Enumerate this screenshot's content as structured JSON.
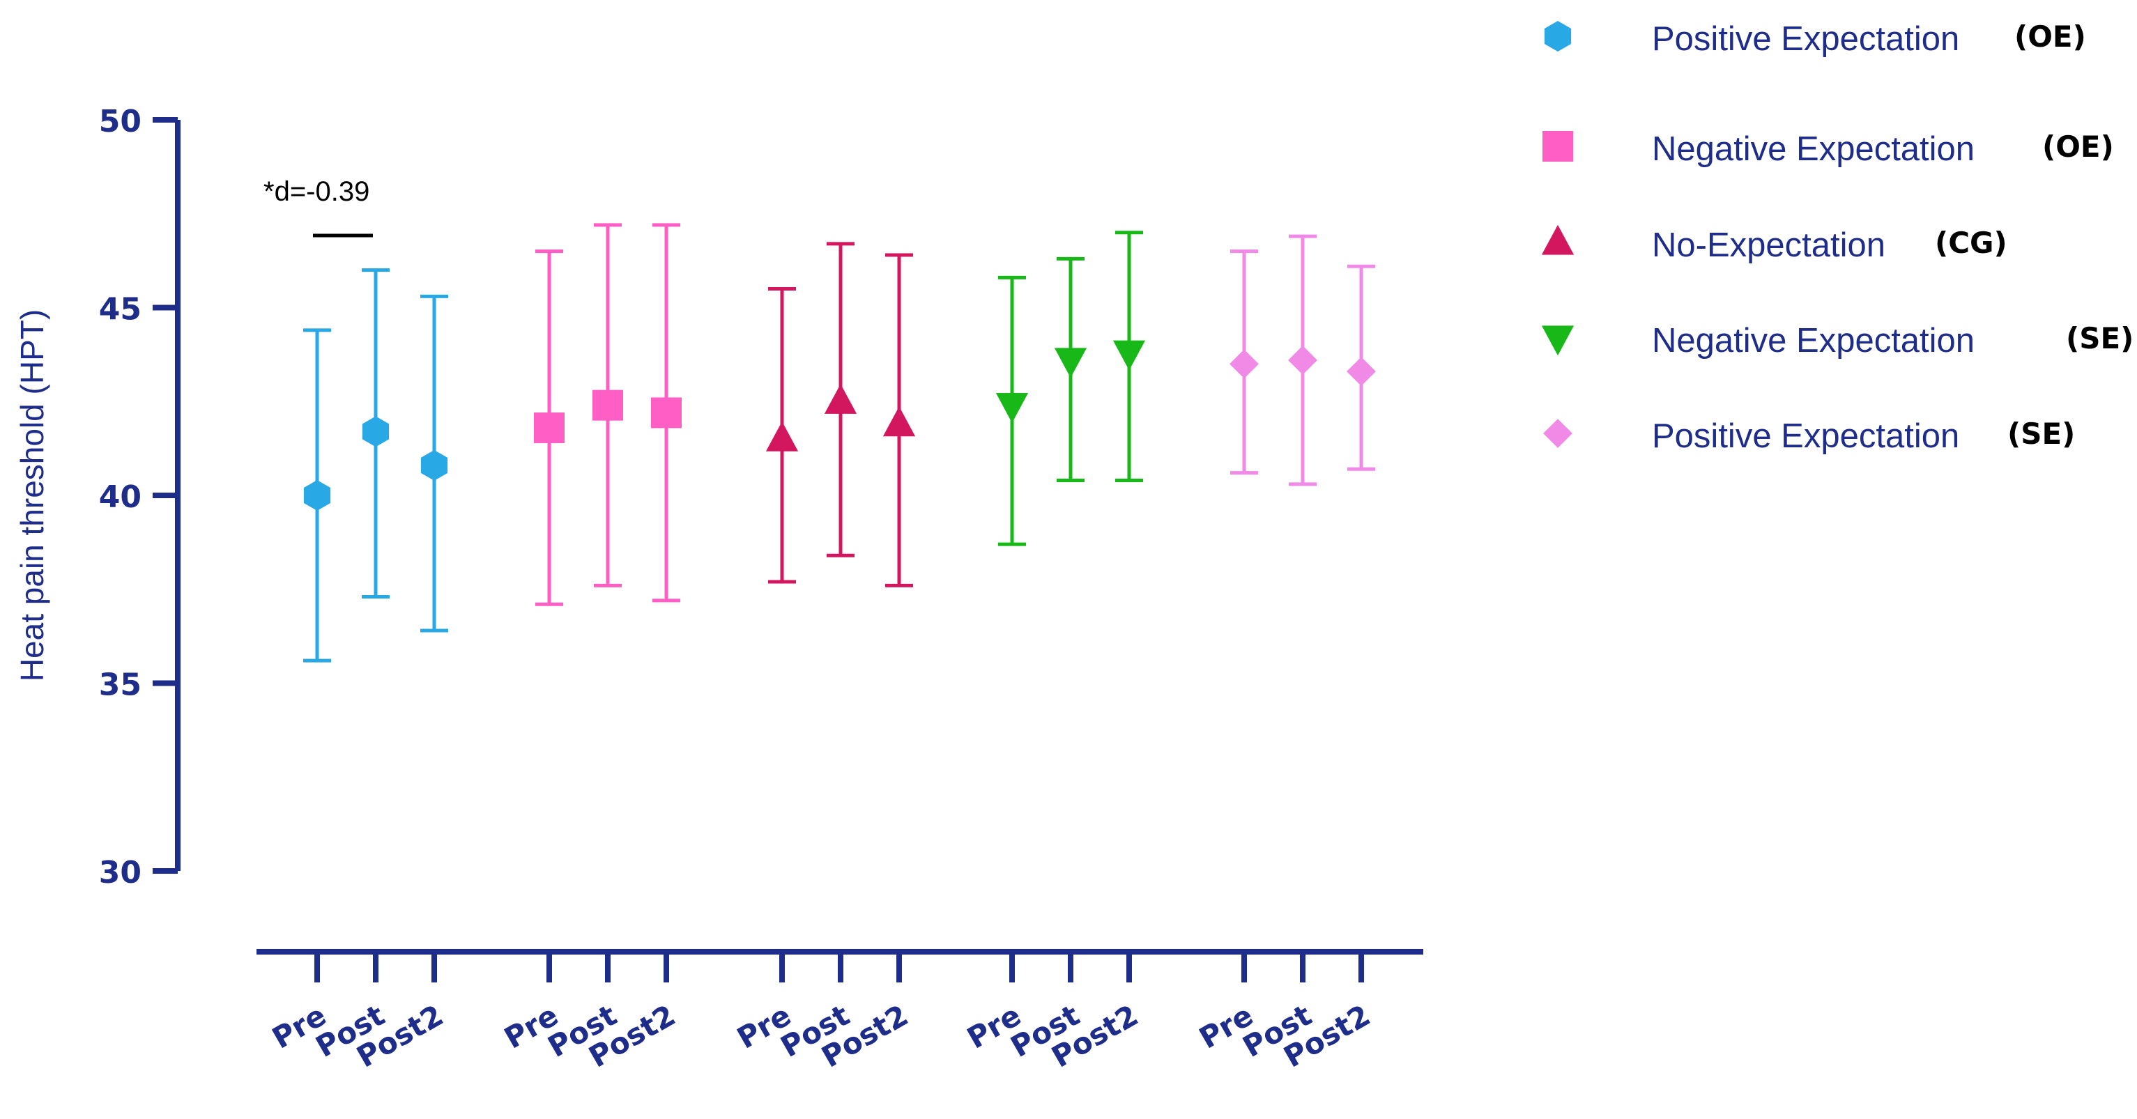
{
  "chart_data": {
    "type": "scatter",
    "subtype": "mean-with-error-bars",
    "ylabel": "Heat pain threshold (HPT)",
    "xlabel": "",
    "ylim": [
      30,
      50
    ],
    "yticks": [
      30,
      35,
      40,
      45,
      50
    ],
    "categories": [
      "Pre",
      "Post",
      "Post2"
    ],
    "annotation": {
      "text": "*d=-0.39",
      "between": [
        "Pre",
        "Post"
      ],
      "series": "Positive Expectation (OE)"
    },
    "series": [
      {
        "name": "Positive Expectation",
        "group": "(OE)",
        "color": "#29a8e6",
        "marker": "hexagon",
        "means": [
          40.0,
          41.7,
          40.8
        ],
        "upper": [
          44.4,
          46.0,
          45.3
        ],
        "lower": [
          35.6,
          37.3,
          36.4
        ]
      },
      {
        "name": "Negative Expectation",
        "group": "(OE)",
        "color": "#ff5fc4",
        "marker": "square",
        "means": [
          41.8,
          42.4,
          42.2
        ],
        "upper": [
          46.5,
          47.2,
          47.2
        ],
        "lower": [
          37.1,
          37.6,
          37.2
        ]
      },
      {
        "name": "No-Expectation",
        "group": "(CG)",
        "color": "#d3175f",
        "marker": "triangle-up",
        "means": [
          41.5,
          42.5,
          41.9
        ],
        "upper": [
          45.5,
          46.7,
          46.4
        ],
        "lower": [
          37.7,
          38.4,
          37.6
        ]
      },
      {
        "name": "Negative Expectation",
        "group": "(SE)",
        "color": "#17b817",
        "marker": "triangle-down",
        "means": [
          42.4,
          43.6,
          43.8
        ],
        "upper": [
          45.8,
          46.3,
          47.0
        ],
        "lower": [
          38.7,
          40.4,
          40.4
        ]
      },
      {
        "name": "Positive Expectation",
        "group": "(SE)",
        "color": "#f08ae6",
        "marker": "diamond",
        "means": [
          43.5,
          43.6,
          43.3
        ],
        "upper": [
          46.5,
          46.9,
          46.1
        ],
        "lower": [
          40.6,
          40.3,
          40.7
        ]
      }
    ],
    "colors": {
      "axis": "#1f2d8a",
      "text": "#1f2d8a"
    }
  }
}
